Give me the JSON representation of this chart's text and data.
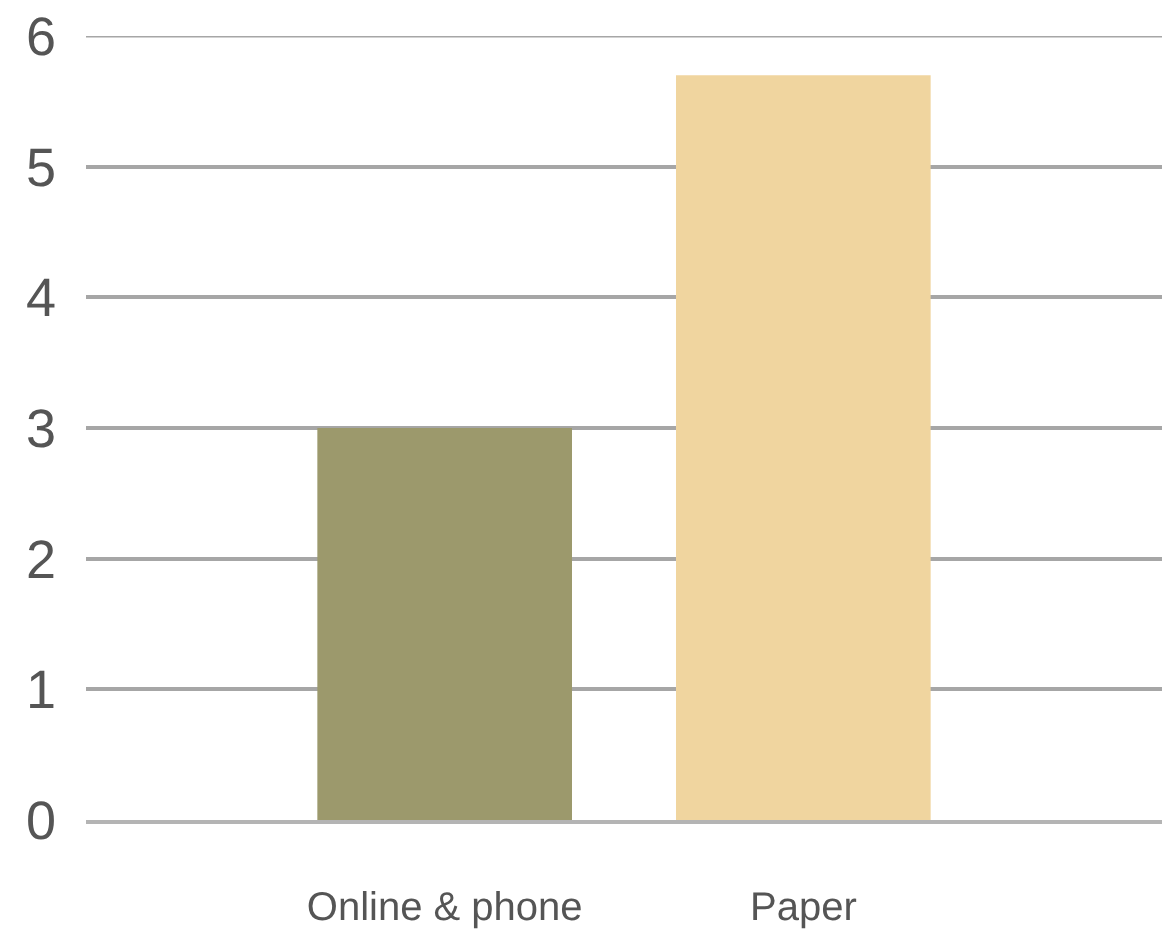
{
  "chart_data": {
    "type": "bar",
    "categories": [
      "Online & phone",
      "Paper"
    ],
    "values": [
      3,
      5.7
    ],
    "colors": [
      "#9c996c",
      "#f0d59f"
    ],
    "ylim": [
      0,
      6
    ],
    "yticks": [
      0,
      1,
      2,
      3,
      4,
      5,
      6
    ],
    "grid": "y"
  }
}
